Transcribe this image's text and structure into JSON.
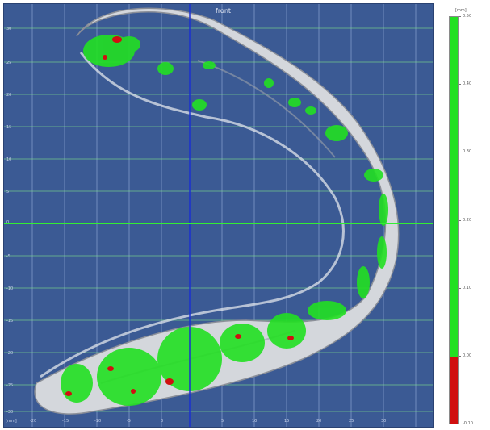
{
  "viewer": {
    "view_label": "front",
    "x_unit": "[mm]",
    "y_ticks": [
      "30",
      "25",
      "20",
      "15",
      "10",
      "5",
      "0",
      "-5",
      "-10",
      "-15",
      "-20",
      "-25",
      "-30"
    ],
    "x_ticks": [
      "-20",
      "-15",
      "-10",
      "-5",
      "0",
      "5",
      "10",
      "15",
      "20",
      "25",
      "30"
    ]
  },
  "color_scale": {
    "unit": "[mm]",
    "ticks": [
      "0.50",
      "0.40",
      "0.30",
      "0.20",
      "0.10",
      "0.00",
      "-0.10"
    ],
    "green_range": [
      0.0,
      0.5
    ],
    "red_range": [
      -0.1,
      0.0
    ],
    "colors": {
      "above": "#22e022",
      "below": "#d01010",
      "background": "#3b5a94"
    }
  }
}
